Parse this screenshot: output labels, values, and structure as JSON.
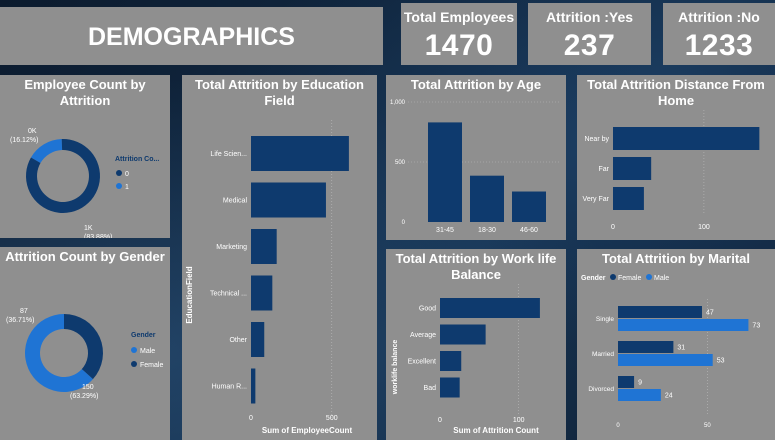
{
  "header": {
    "title": "DEMOGRAPHICS"
  },
  "kpis": [
    {
      "label": "Total Employees",
      "value": "1470"
    },
    {
      "label": "Attrition :Yes",
      "value": "237"
    },
    {
      "label": "Attrition :No",
      "value": "1233"
    }
  ],
  "colors": {
    "card": "#8f8f8f",
    "dark_blue": "#0e3a6e",
    "light_blue": "#1f74d4",
    "bg": "#0f2034"
  },
  "employee_count": {
    "title": "Employee Count by Attrition",
    "legend_title": "Attrition Co...",
    "legend_items": [
      "0",
      "1"
    ],
    "label_small": "0K\n(16.12%)",
    "label_large": "1K\n(83.88%)"
  },
  "gender": {
    "title": "Attrition Count by Gender",
    "legend_title": "Gender",
    "legend_items": [
      "Male",
      "Female"
    ],
    "label_small": "87\n(36.71%)",
    "label_large": "150\n(63.29%)"
  },
  "chart_data": [
    {
      "type": "pie",
      "title": "Employee Count by Attrition",
      "legend_title": "Attrition Co...",
      "categories": [
        "0",
        "1"
      ],
      "values": [
        83.88,
        16.12
      ],
      "unit": "%"
    },
    {
      "type": "bar",
      "title": "Total Attrition by Education Field",
      "orientation": "horizontal",
      "categories": [
        "Life Scien...",
        "Medical",
        "Marketing",
        "Technical ...",
        "Other",
        "Human R..."
      ],
      "values": [
        606,
        464,
        159,
        132,
        82,
        27
      ],
      "xlabel": "Sum of EmployeeCount",
      "ylabel": "EducationField",
      "ticks": [
        "0",
        "500"
      ],
      "xlim": [
        0,
        650
      ]
    },
    {
      "type": "bar",
      "title": "Total Attrition by Age",
      "categories": [
        "31-45",
        "18-30",
        "46-60"
      ],
      "values": [
        830,
        386,
        254
      ],
      "ticks": [
        "0",
        "500",
        "1,000"
      ],
      "ylim": [
        0,
        1000
      ]
    },
    {
      "type": "bar",
      "title": "Total Attrition Distance From Home",
      "orientation": "horizontal",
      "categories": [
        "Near by",
        "Far",
        "Very Far"
      ],
      "values": [
        161,
        42,
        34
      ],
      "ticks": [
        "0",
        "100"
      ],
      "xlim": [
        0,
        165
      ]
    },
    {
      "type": "pie",
      "title": "Attrition Count by Gender",
      "legend_title": "Gender",
      "categories": [
        "Male",
        "Female"
      ],
      "values": [
        150,
        87
      ],
      "percent": [
        63.29,
        36.71
      ]
    },
    {
      "type": "bar",
      "title": "Total Attrition by Work life Balance",
      "orientation": "horizontal",
      "categories": [
        "Good",
        "Average",
        "Excellent",
        "Bad"
      ],
      "values": [
        127,
        58,
        27,
        25
      ],
      "xlabel": "Sum of Attrition Count",
      "ylabel": "worklife balance",
      "ticks": [
        "0",
        "100"
      ],
      "xlim": [
        0,
        150
      ]
    },
    {
      "type": "bar",
      "title": "Total Attrition by Marital",
      "orientation": "horizontal",
      "legend_title": "Gender",
      "categories": [
        "Single",
        "Married",
        "Divorced"
      ],
      "series": [
        {
          "name": "Female",
          "values": [
            47,
            31,
            9
          ]
        },
        {
          "name": "Male",
          "values": [
            73,
            53,
            24
          ]
        }
      ],
      "ticks": [
        "0",
        "50"
      ],
      "xlim": [
        0,
        75
      ]
    }
  ]
}
